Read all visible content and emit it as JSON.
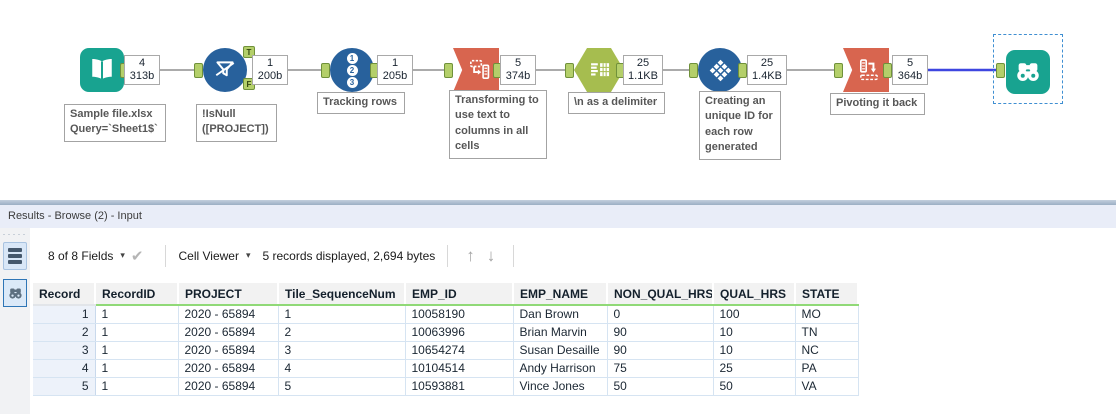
{
  "workflow": {
    "tools": [
      {
        "type": "input-data",
        "count": "4",
        "size": "313b",
        "annotation": "Sample file.xlsx\nQuery=`Sheet1$`"
      },
      {
        "type": "filter",
        "count": "1",
        "size": "200b",
        "annotation": "!IsNull\n([PROJECT])",
        "t_label": "T",
        "f_label": "F"
      },
      {
        "type": "record-id",
        "count": "1",
        "size": "205b",
        "annotation": "Tracking rows",
        "digits": [
          "1",
          "2",
          "3"
        ]
      },
      {
        "type": "transpose",
        "count": "5",
        "size": "374b",
        "annotation": "Transforming to\nuse text to\ncolumns in all\ncells"
      },
      {
        "type": "text-to-columns",
        "count": "25",
        "size": "1.1KB",
        "annotation": "\\n as a delimiter"
      },
      {
        "type": "tile",
        "count": "25",
        "size": "1.4KB",
        "annotation": "Creating an\nunique ID for\neach row\ngenerated"
      },
      {
        "type": "cross-tab",
        "count": "5",
        "size": "364b",
        "annotation": "Pivoting it back"
      },
      {
        "type": "browse"
      }
    ]
  },
  "results": {
    "title": "Results - Browse (2) - Input",
    "toolbar": {
      "fields_dropdown": "8 of 8 Fields",
      "cell_viewer_dropdown": "Cell Viewer",
      "records_info": "5 records displayed, 2,694 bytes"
    },
    "table": {
      "columns": [
        "Record",
        "RecordID",
        "PROJECT",
        "Tile_SequenceNum",
        "EMP_ID",
        "EMP_NAME",
        "NON_QUAL_HRS",
        "QUAL_HRS",
        "STATE"
      ],
      "rows": [
        [
          "1",
          "1",
          "2020 - 65894",
          "1",
          "10058190",
          "Dan Brown",
          "0",
          "100",
          "MO"
        ],
        [
          "2",
          "1",
          "2020 - 65894",
          "2",
          "10063996",
          "Brian Marvin",
          "90",
          "10",
          "TN"
        ],
        [
          "3",
          "1",
          "2020 - 65894",
          "3",
          "10654274",
          "Susan Desaille",
          "90",
          "10",
          "NC"
        ],
        [
          "4",
          "1",
          "2020 - 65894",
          "4",
          "10104514",
          "Andy Harrison",
          "75",
          "25",
          "PA"
        ],
        [
          "5",
          "1",
          "2020 - 65894",
          "5",
          "10593881",
          "Vince Jones",
          "50",
          "50",
          "VA"
        ]
      ]
    }
  },
  "icons": {
    "dropdown_caret": "▾",
    "check": "✔",
    "up_arrow": "↑",
    "down_arrow": "↓",
    "drag_dots": "·····"
  },
  "colors": {
    "teal": "#18A390",
    "blue": "#28619C",
    "red": "#D8654F",
    "olive_green": "#A6BD4F",
    "anchor_green": "#B4CF6A",
    "wire_gray": "#ABABAB",
    "wire_selected": "#3E46E0",
    "selection_dash": "#3F8FD2",
    "header_underline": "#90D977",
    "splitter": "#A4B6CA",
    "title_bg": "#E9EDF8"
  }
}
